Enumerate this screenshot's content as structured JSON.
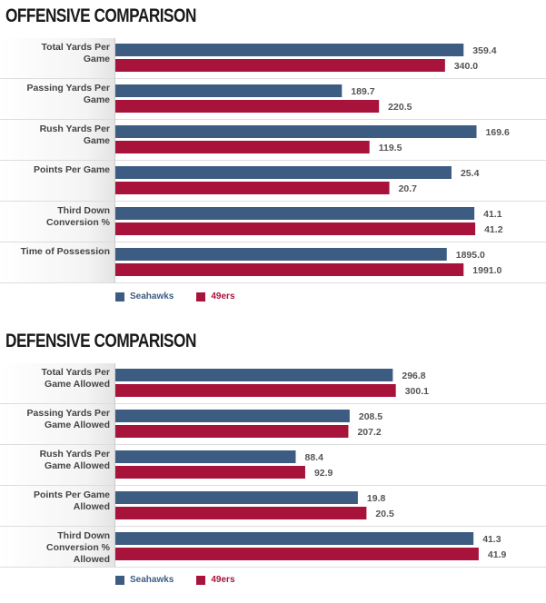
{
  "chart_data": [
    {
      "type": "bar",
      "orientation": "horizontal",
      "title": "OFFENSIVE COMPARISON",
      "categories": [
        "Total Yards Per Game",
        "Passing Yards Per Game",
        "Rush Yards Per Game",
        "Points Per Game",
        "Third Down Conversion %",
        "Time of Possession"
      ],
      "category_lines": [
        [
          "Total Yards Per",
          "Game"
        ],
        [
          "Passing Yards Per",
          "Game"
        ],
        [
          "Rush Yards Per",
          "Game"
        ],
        [
          "Points Per Game"
        ],
        [
          "Third Down",
          "Conversion %"
        ],
        [
          "Time of Possession"
        ]
      ],
      "series": [
        {
          "name": "Seahawks",
          "color": "#3d5c82",
          "values": [
            359.4,
            189.7,
            169.6,
            25.4,
            41.1,
            1895.0
          ],
          "labels": [
            "359.4",
            "189.7",
            "169.6",
            "25.4",
            "41.1",
            "1895.0"
          ]
        },
        {
          "name": "49ers",
          "color": "#a8133c",
          "values": [
            340.0,
            220.5,
            119.5,
            20.7,
            41.2,
            1991.0
          ],
          "labels": [
            "340.0",
            "220.5",
            "119.5",
            "20.7",
            "41.2",
            "1991.0"
          ]
        }
      ],
      "legend": "bottom-left",
      "grid": false,
      "fill_fraction": {
        "Seahawks": [
          0.809,
          0.527,
          0.839,
          0.781,
          0.834,
          0.77
        ],
        "49ers": [
          0.766,
          0.613,
          0.591,
          0.637,
          0.836,
          0.809
        ]
      }
    },
    {
      "type": "bar",
      "orientation": "horizontal",
      "title": "DEFENSIVE COMPARISON",
      "categories": [
        "Total Yards Per Game Allowed",
        "Passing Yards Per Game Allowed",
        "Rush Yards Per Game Allowed",
        "Points Per Game Allowed",
        "Third Down Conversion % Allowed"
      ],
      "category_lines": [
        [
          "Total Yards Per",
          "Game Allowed"
        ],
        [
          "Passing Yards Per",
          "Game Allowed"
        ],
        [
          "Rush Yards Per",
          "Game Allowed"
        ],
        [
          "Points Per Game",
          "Allowed"
        ],
        [
          "Third Down",
          "Conversion %",
          "Allowed"
        ]
      ],
      "series": [
        {
          "name": "Seahawks",
          "color": "#3d5c82",
          "values": [
            296.8,
            208.5,
            88.4,
            19.8,
            41.3
          ],
          "labels": [
            "296.8",
            "208.5",
            "88.4",
            "19.8",
            "41.3"
          ]
        },
        {
          "name": "49ers",
          "color": "#a8133c",
          "values": [
            300.1,
            207.2,
            92.9,
            20.5,
            41.9
          ],
          "labels": [
            "300.1",
            "207.2",
            "92.9",
            "20.5",
            "41.9"
          ]
        }
      ],
      "legend": "bottom-left",
      "grid": false,
      "fill_fraction": {
        "Seahawks": [
          0.645,
          0.545,
          0.42,
          0.564,
          0.832
        ],
        "49ers": [
          0.652,
          0.542,
          0.442,
          0.584,
          0.844
        ]
      }
    }
  ]
}
